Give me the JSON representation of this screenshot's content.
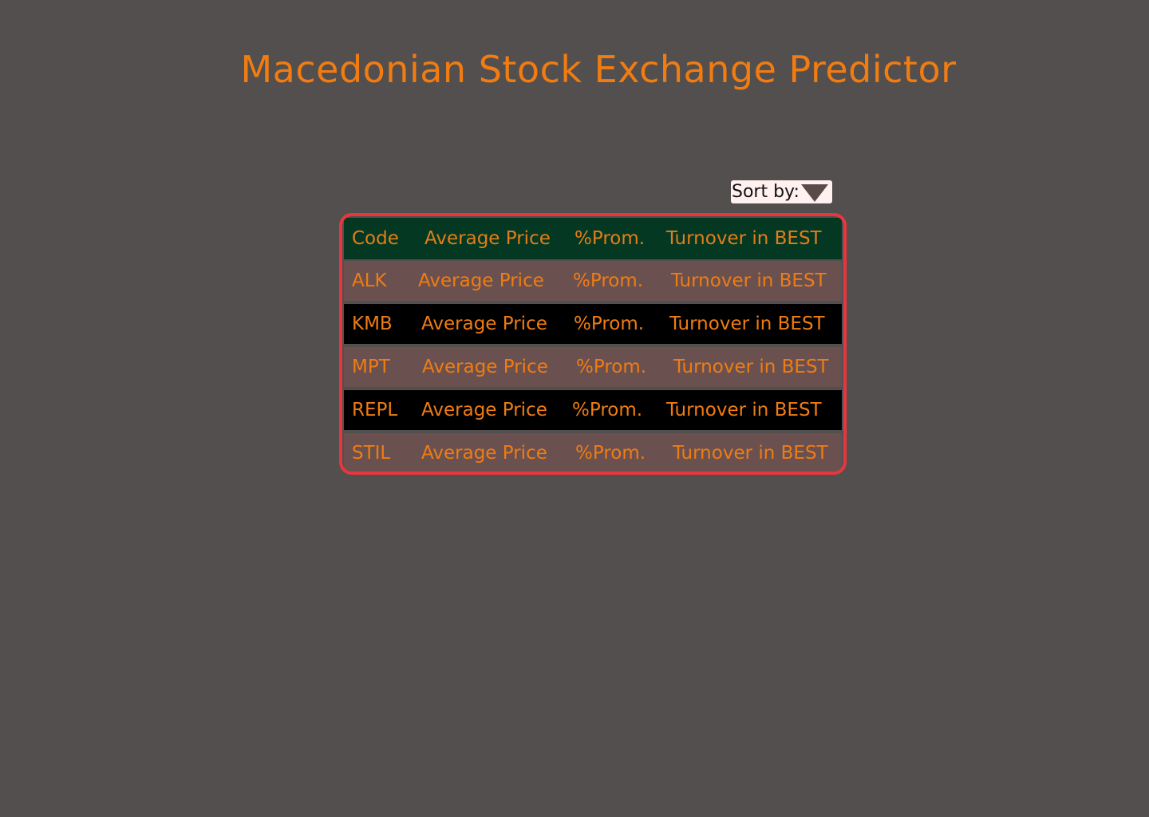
{
  "page": {
    "title": "Macedonian Stock Exchange Predictor"
  },
  "sort": {
    "label": "Sort by:",
    "icon": "triangle-down-icon"
  },
  "table": {
    "headers": [
      "Code",
      "Average Price",
      "%Prom.",
      "Turnover in BEST"
    ],
    "rows": [
      [
        "ALK",
        "Average Price",
        "%Prom.",
        "Turnover in BEST"
      ],
      [
        "KMB",
        "Average Price",
        "%Prom.",
        "Turnover in BEST"
      ],
      [
        "MPT",
        "Average Price",
        "%Prom.",
        "Turnover in BEST"
      ],
      [
        "REPL",
        "Average Price",
        "%Prom.",
        "Turnover in BEST"
      ],
      [
        "STIL",
        "Average Price",
        "%Prom.",
        "Turnover in BEST"
      ]
    ]
  },
  "colors": {
    "background": "#534f4e",
    "accent": "#f07c12",
    "header_row": "#053822",
    "row_light": "#6a5150",
    "row_dark": "#000000",
    "frame_border": "#e8363f",
    "sort_background": "#fff1ef"
  }
}
